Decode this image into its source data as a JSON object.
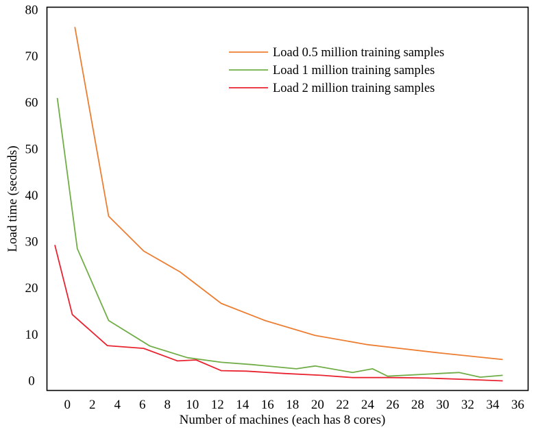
{
  "chart_data": {
    "type": "line",
    "title": "",
    "xlabel": "Number of machines (each has 8 cores)",
    "ylabel": "Load time (seconds)",
    "xlim": [
      -1.6,
      36.8
    ],
    "ylim": [
      -2,
      80.5
    ],
    "xticks": [
      0,
      2,
      4,
      6,
      8,
      10,
      12,
      14,
      16,
      18,
      20,
      22,
      24,
      26,
      28,
      30,
      32,
      34,
      36
    ],
    "yticks": [
      0,
      10,
      20,
      30,
      40,
      50,
      60,
      70,
      80
    ],
    "legend_position": "top-right",
    "grid": false,
    "series": [
      {
        "name": "Load 0.5 million training samples",
        "color": "#ED7D31",
        "x": [
          0.6,
          3.3,
          6.1,
          9.0,
          12.3,
          15.8,
          19.8,
          24.0,
          29.8,
          34.8
        ],
        "y": [
          76.3,
          35.5,
          28.0,
          23.5,
          16.7,
          13.0,
          9.8,
          7.8,
          6.0,
          4.6
        ]
      },
      {
        "name": "Load 1 million training samples",
        "color": "#70AD47",
        "x": [
          -0.8,
          0.8,
          3.3,
          6.6,
          9.6,
          12.3,
          14.8,
          18.3,
          19.8,
          22.8,
          24.4,
          25.6,
          29.8,
          31.3,
          33.0,
          34.8
        ],
        "y": [
          61.0,
          28.5,
          13.0,
          7.5,
          5.0,
          4.0,
          3.5,
          2.6,
          3.2,
          1.8,
          2.6,
          1.0,
          1.6,
          1.8,
          0.8,
          1.2
        ]
      },
      {
        "name": "Load 2 million training samples",
        "color": "#E8232F",
        "x": [
          -1.0,
          0.4,
          3.2,
          6.1,
          8.8,
          10.3,
          12.3,
          14.3,
          17.3,
          20.3,
          22.8,
          25.8,
          28.8,
          31.8,
          34.8
        ],
        "y": [
          29.3,
          14.3,
          7.6,
          7.0,
          4.3,
          4.5,
          2.2,
          2.1,
          1.6,
          1.2,
          0.7,
          0.7,
          0.6,
          0.3,
          0.0
        ]
      }
    ]
  }
}
